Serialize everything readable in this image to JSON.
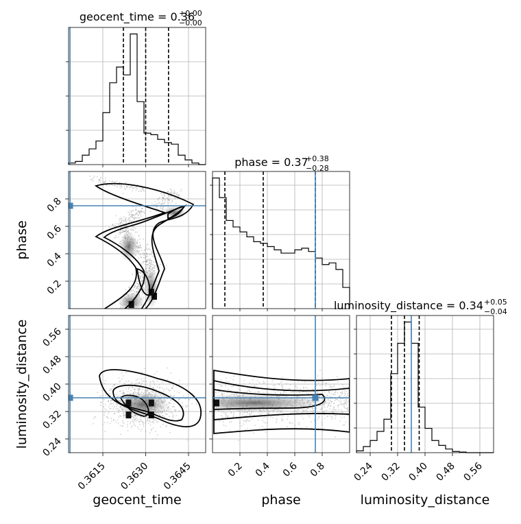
{
  "chart_data": {
    "type": "corner",
    "parameters": [
      "geocent_time",
      "phase",
      "luminosity_distance"
    ],
    "truths": {
      "geocent_time": 0.36035,
      "phase": 0.75,
      "luminosity_distance": 0.36
    },
    "titles": {
      "geocent_time": {
        "name": "geocent_time",
        "value": "0.36",
        "plus": "+0.00",
        "minus": "−0.00"
      },
      "phase": {
        "name": "phase",
        "value": "0.37",
        "plus": "+0.38",
        "minus": "−0.28"
      },
      "luminosity_distance": {
        "name": "luminosity_distance",
        "value": "0.34",
        "plus": "+0.05",
        "minus": "−0.04"
      }
    },
    "axes": {
      "geocent_time": {
        "range": [
          0.3603,
          0.3651
        ],
        "ticks": [
          0.3615,
          0.363,
          0.3645
        ],
        "tick_labels": [
          "0.3615",
          "0.3630",
          "0.3645"
        ]
      },
      "phase": {
        "range": [
          0.0,
          1.0
        ],
        "ticks": [
          0.2,
          0.4,
          0.6,
          0.8
        ],
        "tick_labels": [
          "0.2",
          "0.4",
          "0.6",
          "0.8"
        ]
      },
      "luminosity_distance": {
        "range": [
          0.2,
          0.6
        ],
        "ticks": [
          0.24,
          0.32,
          0.4,
          0.48,
          0.56
        ],
        "tick_labels": [
          "0.24",
          "0.32",
          "0.40",
          "0.48",
          "0.56"
        ]
      }
    },
    "histograms": {
      "geocent_time": {
        "edges": [
          0.3603,
          0.36054,
          0.36078,
          0.36102,
          0.36126,
          0.3615,
          0.36174,
          0.36198,
          0.36222,
          0.36246,
          0.3627,
          0.36294,
          0.36318,
          0.36342,
          0.36366,
          0.3639,
          0.36414,
          0.36438,
          0.36462,
          0.36486,
          0.3651
        ],
        "counts": [
          1,
          2,
          6,
          10,
          15,
          33,
          52,
          62,
          57,
          83,
          40,
          20,
          19,
          16,
          14,
          13,
          6,
          3,
          1,
          0
        ],
        "quantiles": [
          0.36222,
          0.363,
          0.3638
        ]
      },
      "phase": {
        "edges": [
          0.0,
          0.05,
          0.1,
          0.15,
          0.2,
          0.25,
          0.3,
          0.35,
          0.4,
          0.45,
          0.5,
          0.55,
          0.6,
          0.65,
          0.7,
          0.75,
          0.8,
          0.85,
          0.9,
          0.95,
          1.0
        ],
        "counts": [
          80,
          68,
          54,
          50,
          47,
          44,
          41,
          40,
          38,
          36,
          34,
          34,
          36,
          37,
          35,
          31,
          27,
          28,
          24,
          13
        ],
        "quantiles": [
          0.09,
          0.37,
          0.75
        ]
      },
      "luminosity_distance": {
        "edges": [
          0.2,
          0.22,
          0.24,
          0.26,
          0.28,
          0.3,
          0.32,
          0.34,
          0.36,
          0.38,
          0.4,
          0.42,
          0.44,
          0.46,
          0.48,
          0.5,
          0.52,
          0.54,
          0.56,
          0.58,
          0.6
        ],
        "counts": [
          3,
          10,
          20,
          35,
          55,
          130,
          180,
          215,
          180,
          75,
          40,
          20,
          12,
          6,
          2,
          1,
          0,
          0,
          0,
          0
        ],
        "quantiles": [
          0.302,
          0.34,
          0.383
        ]
      }
    },
    "grid": true
  }
}
